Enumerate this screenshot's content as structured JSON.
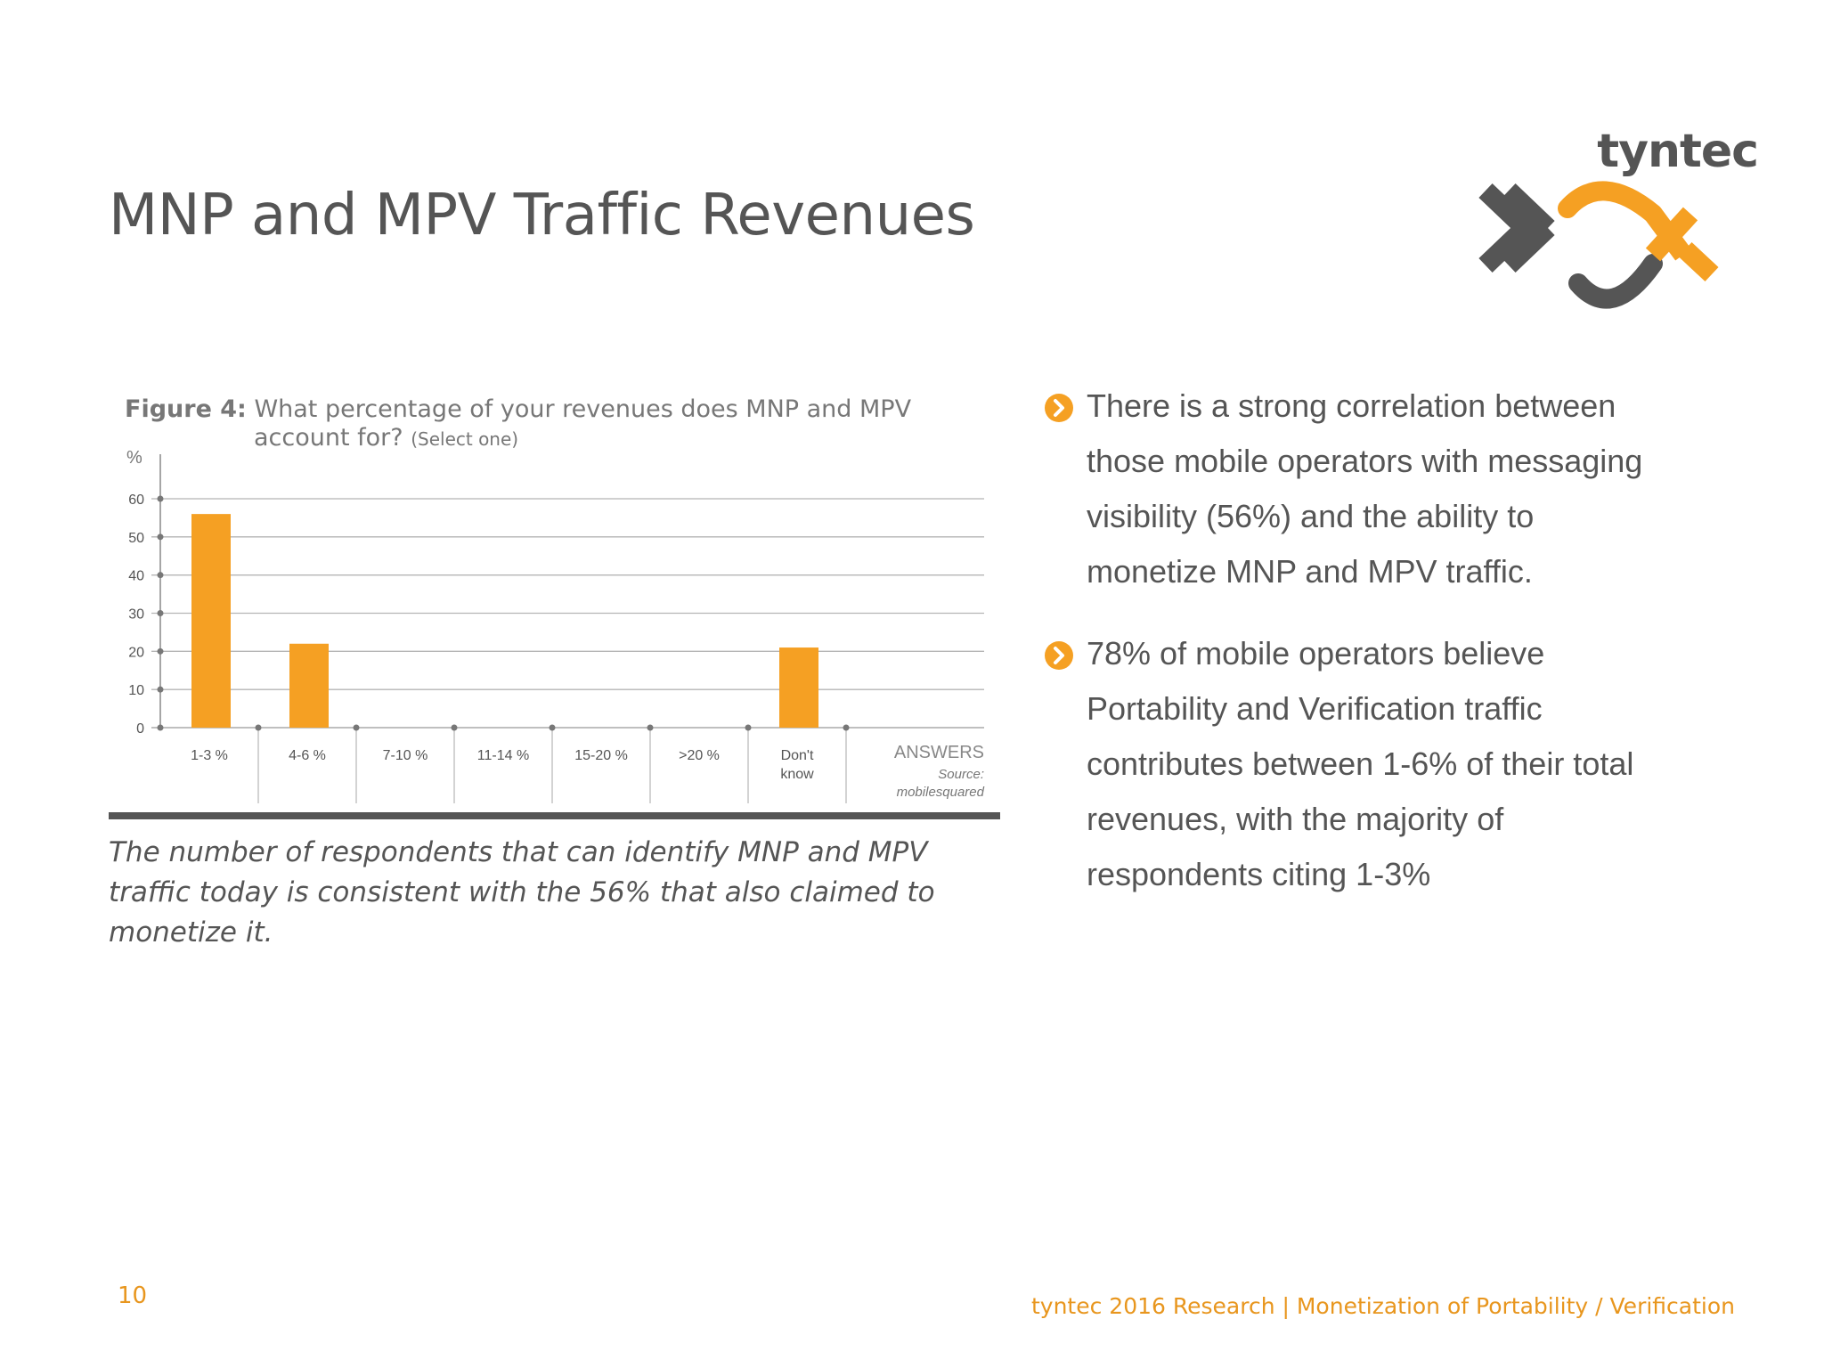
{
  "slide": {
    "title": "MNP and MPV Traffic Revenues",
    "page_number": "10",
    "footer": "tyntec 2016 Research | Monetization of Portability / Verification"
  },
  "logo": {
    "text": "tyntec",
    "colors": {
      "gray": "#555555",
      "orange": "#f5a023"
    }
  },
  "figure": {
    "label": "Figure 4:",
    "question_line1": "What percentage of your revenues does MNP and MPV",
    "question_line2": "account for?",
    "select_note": "(Select one)"
  },
  "chart_data": {
    "type": "bar",
    "categories": [
      "1-3 %",
      "4-6 %",
      "7-10 %",
      "11-14 %",
      "15-20 %",
      ">20 %",
      "Don't know"
    ],
    "values": [
      56,
      22,
      0,
      0,
      0,
      0,
      21
    ],
    "ylabel": "%",
    "xlabel": "ANSWERS",
    "ylim": [
      0,
      60
    ],
    "yticks": [
      0,
      10,
      20,
      30,
      40,
      50,
      60
    ],
    "grid": true,
    "source_label": "Source:",
    "source_value": "mobilesquared",
    "bar_color": "#f5a023"
  },
  "caption": "The number of respondents that can identify MNP and MPV traffic today is consistent with the 56% that also claimed to monetize it.",
  "bullets": [
    {
      "icon": "chevron-right-circle-icon",
      "text": "There is a strong correlation between those mobile operators with messaging visibility (56%) and the ability to monetize MNP and MPV traffic."
    },
    {
      "icon": "chevron-right-circle-icon",
      "text": "78% of mobile operators believe Portability and Verification traffic contributes between 1-6% of their total revenues, with the majority of respondents citing 1-3%"
    }
  ],
  "colors": {
    "accent": "#e8961e",
    "text": "#555555"
  }
}
